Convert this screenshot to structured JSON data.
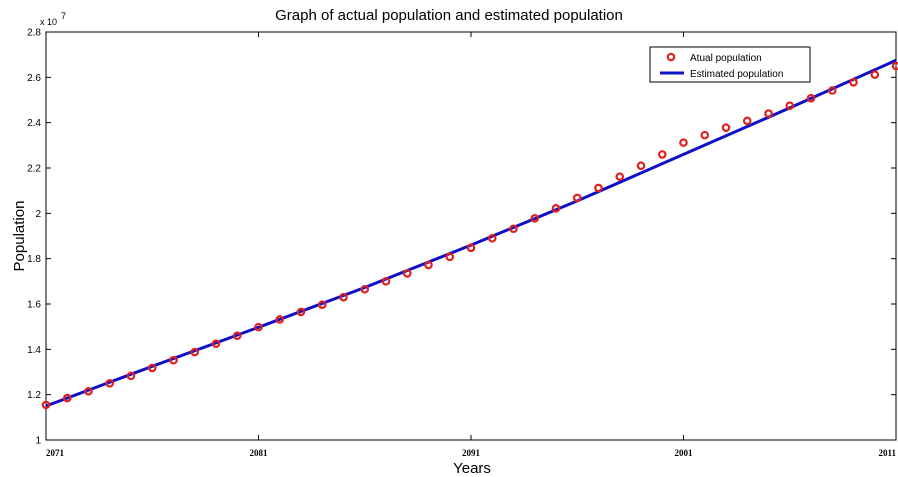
{
  "chart_data": {
    "type": "line",
    "title": "Graph of actual population and estimated population",
    "xlabel": "Years",
    "ylabel": "Population",
    "y_multiplier_label": "x 10",
    "y_multiplier_exponent": "7",
    "xlim": [
      0,
      40
    ],
    "ylim": [
      1.0,
      2.8
    ],
    "yticks": [
      1,
      1.2,
      1.4,
      1.6,
      1.8,
      2,
      2.2,
      2.4,
      2.6,
      2.8
    ],
    "ytick_labels": [
      "1",
      "1.2",
      "1.4",
      "1.6",
      "1.8",
      "2",
      "2.2",
      "2.4",
      "2.6",
      "2.8"
    ],
    "xticks": [
      0,
      10,
      20,
      30,
      40
    ],
    "xtick_labels": [
      "2071",
      "2081",
      "2091",
      "2001",
      "2011"
    ],
    "legend_position": "top-right",
    "grid": false,
    "series": [
      {
        "name": "Atual population",
        "style": "markers",
        "color": "#e02020",
        "x": [
          0,
          1,
          2,
          3,
          4,
          5,
          6,
          7,
          8,
          9,
          10,
          11,
          12,
          13,
          14,
          15,
          16,
          17,
          18,
          19,
          20,
          21,
          22,
          23,
          24,
          25,
          26,
          27,
          28,
          29,
          30,
          31,
          32,
          33,
          34,
          35,
          36,
          37,
          38,
          39,
          40
        ],
        "values": [
          1.155,
          1.185,
          1.215,
          1.25,
          1.283,
          1.318,
          1.352,
          1.388,
          1.425,
          1.46,
          1.498,
          1.532,
          1.565,
          1.597,
          1.63,
          1.665,
          1.7,
          1.735,
          1.772,
          1.808,
          1.848,
          1.89,
          1.932,
          1.978,
          2.022,
          2.068,
          2.112,
          2.162,
          2.21,
          2.26,
          2.312,
          2.345,
          2.378,
          2.408,
          2.44,
          2.475,
          2.508,
          2.542,
          2.578,
          2.612,
          2.65
        ]
      },
      {
        "name": "Estimated population",
        "style": "line",
        "color": "#1010c8",
        "x": [
          0,
          5,
          10,
          15,
          20,
          25,
          30,
          35,
          40
        ],
        "values": [
          1.15,
          1.325,
          1.497,
          1.673,
          1.86,
          2.055,
          2.26,
          2.465,
          2.675
        ]
      }
    ]
  }
}
